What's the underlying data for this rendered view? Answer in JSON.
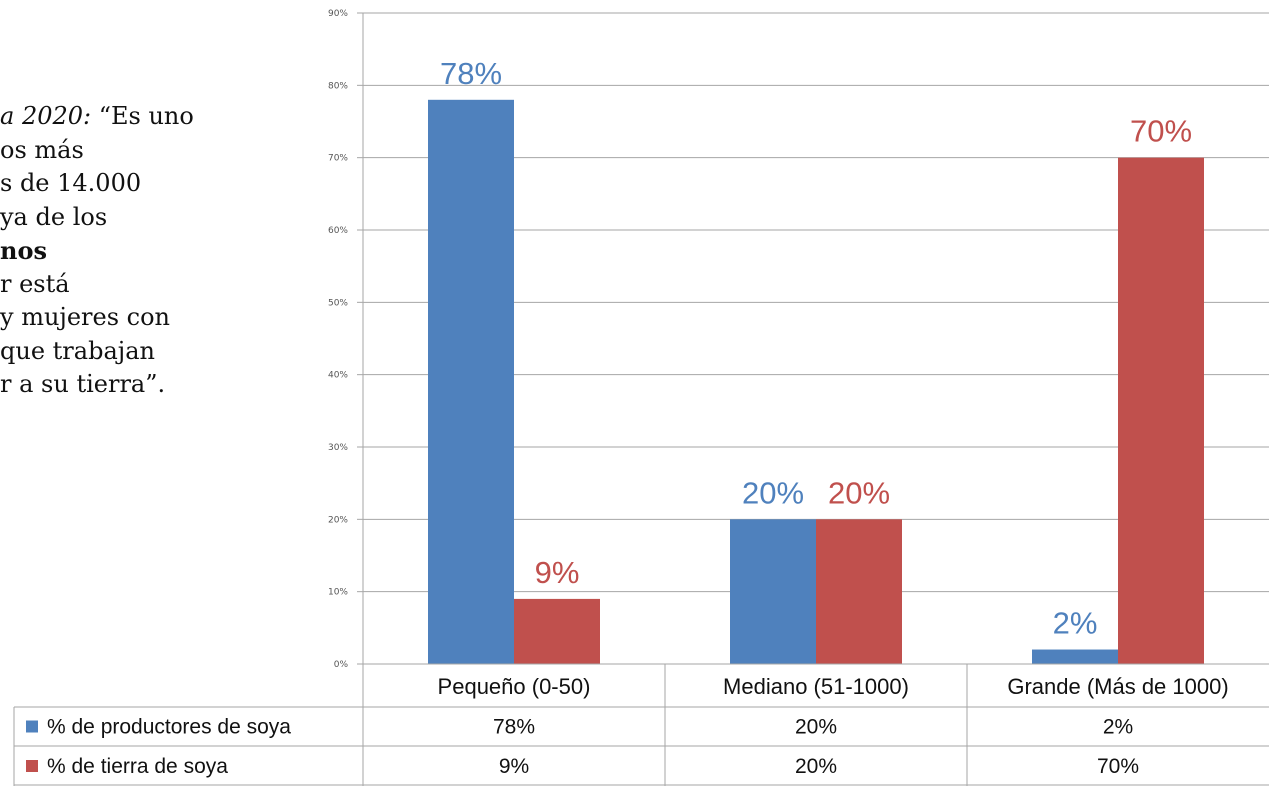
{
  "left_text": {
    "line1_italic": "a 2020:",
    "line1_rest": " “Es uno",
    "line2": "os más",
    "line3": "s de 14.000",
    "line4": "ya de los",
    "line5_bold": "nos",
    "line6": "r está",
    "line7": "y mujeres con",
    "line8": "que trabajan",
    "line9": "r a su tierra”."
  },
  "chart_data": {
    "type": "bar",
    "categories": [
      "Pequeño (0-50)",
      "Mediano (51-1000)",
      "Grande (Más de 1000)"
    ],
    "series": [
      {
        "name": "% de productores de soya",
        "values": [
          78,
          20,
          2
        ],
        "labels": [
          "78%",
          "20%",
          "2%"
        ],
        "color": "#4f81bd",
        "label_color": "#4f81bd"
      },
      {
        "name": "% de tierra de soya",
        "values": [
          9,
          20,
          70
        ],
        "labels": [
          "9%",
          "20%",
          "70%"
        ],
        "color": "#c0504d",
        "label_color": "#c0504d"
      }
    ],
    "y_ticks": [
      0,
      10,
      20,
      30,
      40,
      50,
      60,
      70,
      80,
      90
    ],
    "y_tick_labels": [
      "0%",
      "10%",
      "20%",
      "30%",
      "40%",
      "50%",
      "60%",
      "70%",
      "80%",
      "90%"
    ],
    "ylim": [
      0,
      90
    ],
    "grid": true,
    "legend": "data-table-bottom"
  }
}
